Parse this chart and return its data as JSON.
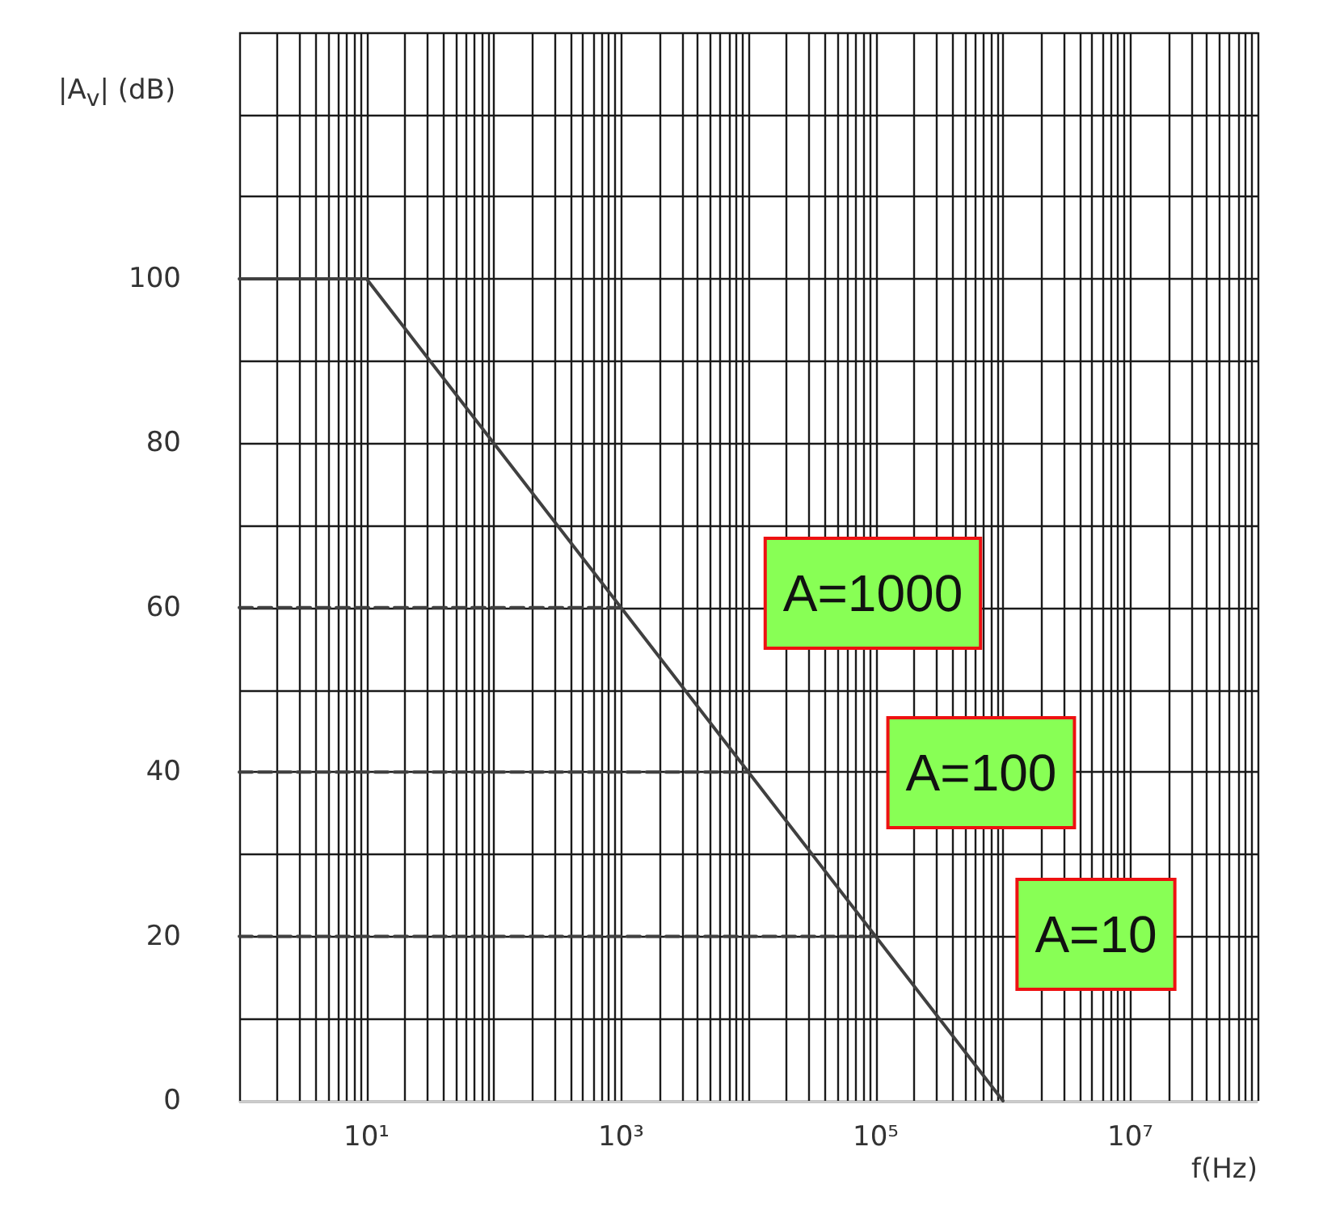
{
  "chart_data": {
    "type": "line",
    "xlabel": "f(Hz)",
    "ylabel": "|A$_{v}$| (dB)",
    "log": "x",
    "xlim": [
      1,
      100000000
    ],
    "ylim": [
      0,
      130
    ],
    "xticks": [
      {
        "value": 1,
        "label": null
      },
      {
        "value": 2,
        "label": null
      },
      {
        "value": 3,
        "label": null
      },
      {
        "value": 4,
        "label": null
      },
      {
        "value": 5,
        "label": null
      },
      {
        "value": 6,
        "label": null
      },
      {
        "value": 7,
        "label": null
      },
      {
        "value": 8,
        "label": null
      },
      {
        "value": 9,
        "label": null
      },
      {
        "value": 10,
        "label": "10¹"
      },
      {
        "value": 20,
        "label": null
      },
      {
        "value": 30,
        "label": null
      },
      {
        "value": 40,
        "label": null
      },
      {
        "value": 50,
        "label": null
      },
      {
        "value": 60,
        "label": null
      },
      {
        "value": 70,
        "label": null
      },
      {
        "value": 80,
        "label": null
      },
      {
        "value": 90,
        "label": null
      },
      {
        "value": 100,
        "label": null
      },
      {
        "value": 200,
        "label": null
      },
      {
        "value": 300,
        "label": null
      },
      {
        "value": 400,
        "label": null
      },
      {
        "value": 500,
        "label": null
      },
      {
        "value": 600,
        "label": null
      },
      {
        "value": 700,
        "label": null
      },
      {
        "value": 800,
        "label": null
      },
      {
        "value": 900,
        "label": null
      },
      {
        "value": 1000,
        "label": "10³"
      },
      {
        "value": 2000,
        "label": null
      },
      {
        "value": 3000,
        "label": null
      },
      {
        "value": 4000,
        "label": null
      },
      {
        "value": 5000,
        "label": null
      },
      {
        "value": 6000,
        "label": null
      },
      {
        "value": 7000,
        "label": null
      },
      {
        "value": 8000,
        "label": null
      },
      {
        "value": 9000,
        "label": null
      },
      {
        "value": 10000,
        "label": null
      },
      {
        "value": 20000,
        "label": null
      },
      {
        "value": 30000,
        "label": null
      },
      {
        "value": 40000,
        "label": null
      },
      {
        "value": 50000,
        "label": null
      },
      {
        "value": 60000,
        "label": null
      },
      {
        "value": 70000,
        "label": null
      },
      {
        "value": 80000,
        "label": null
      },
      {
        "value": 90000,
        "label": null
      },
      {
        "value": 100000,
        "label": "10⁵"
      },
      {
        "value": 200000,
        "label": null
      },
      {
        "value": 300000,
        "label": null
      },
      {
        "value": 400000,
        "label": null
      },
      {
        "value": 500000,
        "label": null
      },
      {
        "value": 600000,
        "label": null
      },
      {
        "value": 700000,
        "label": null
      },
      {
        "value": 800000,
        "label": null
      },
      {
        "value": 900000,
        "label": null
      },
      {
        "value": 1000000,
        "label": null
      },
      {
        "value": 2000000,
        "label": null
      },
      {
        "value": 3000000,
        "label": null
      },
      {
        "value": 4000000,
        "label": null
      },
      {
        "value": 5000000,
        "label": null
      },
      {
        "value": 6000000,
        "label": null
      },
      {
        "value": 7000000,
        "label": null
      },
      {
        "value": 8000000,
        "label": null
      },
      {
        "value": 9000000,
        "label": null
      },
      {
        "value": 10000000,
        "label": "10⁷"
      },
      {
        "value": 20000000,
        "label": null
      },
      {
        "value": 30000000,
        "label": null
      },
      {
        "value": 40000000,
        "label": null
      },
      {
        "value": 50000000,
        "label": null
      },
      {
        "value": 60000000,
        "label": null
      },
      {
        "value": 70000000,
        "label": null
      },
      {
        "value": 80000000,
        "label": null
      },
      {
        "value": 90000000,
        "label": null
      },
      {
        "value": 100000000,
        "label": null
      }
    ],
    "yticks": [
      0,
      {
        "value": 10,
        "label": null
      },
      20,
      {
        "value": 30,
        "label": null
      },
      40,
      {
        "value": 50,
        "label": null
      },
      60,
      {
        "value": 70,
        "label": null
      },
      80,
      {
        "value": 90,
        "label": null
      },
      100,
      {
        "value": 110,
        "label": null
      },
      {
        "value": 120,
        "label": null
      },
      {
        "value": 130,
        "label": null
      }
    ],
    "grid": true,
    "marker": "none",
    "series": [
      {
        "color": "#404040",
        "x": [
          1,
          10,
          1000000
        ],
        "values": [
          100,
          100,
          0
        ],
        "line_style": "solid"
      },
      {
        "color": "#404040",
        "x": [
          1,
          1000
        ],
        "values": [
          60,
          60
        ],
        "line_style": "dashed"
      },
      {
        "color": "#404040",
        "x": [
          1,
          10000
        ],
        "values": [
          40,
          40
        ],
        "line_style": "dashed"
      },
      {
        "color": "#404040",
        "x": [
          1,
          100000
        ],
        "values": [
          20,
          20
        ],
        "line_style": "dashed"
      }
    ],
    "annotations": [
      "A=1000",
      "A=100",
      "A=10"
    ]
  }
}
